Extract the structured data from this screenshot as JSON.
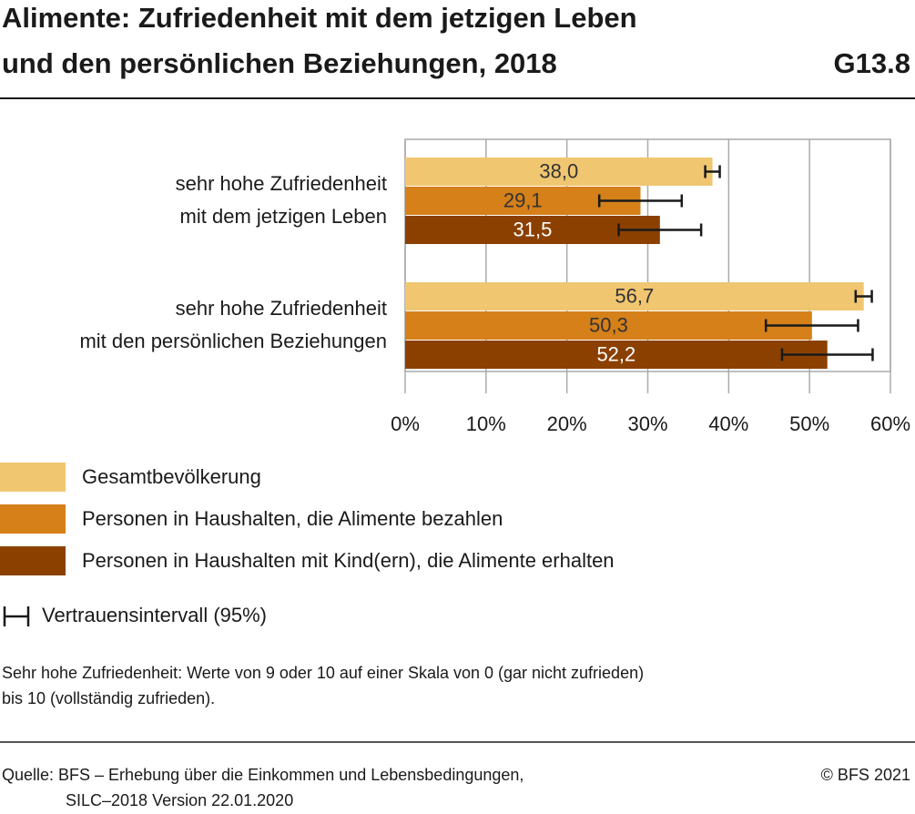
{
  "chart_data": {
    "type": "bar",
    "orientation": "horizontal",
    "title": [
      "Alimente: Zufriedenheit mit dem jetzigen Leben",
      "und den persönlichen Beziehungen, 2018"
    ],
    "chart_id": "G13.8",
    "categories": [
      [
        "sehr hohe Zufriedenheit",
        "mit dem jetzigen Leben"
      ],
      [
        "sehr hohe Zufriedenheit",
        "mit den persönlichen Beziehungen"
      ]
    ],
    "series": [
      {
        "name": "Gesamtbevölkerung",
        "color": "#f0c670",
        "label_color": "#333333",
        "values": [
          38.0,
          56.7
        ],
        "value_labels": [
          "38,0",
          "56,7"
        ],
        "errors": [
          0.9,
          1.0
        ]
      },
      {
        "name": "Personen in Haushalten, die Alimente bezahlen",
        "color": "#d58019",
        "label_color": "#333333",
        "values": [
          29.1,
          50.3
        ],
        "value_labels": [
          "29,1",
          "50,3"
        ],
        "errors": [
          5.1,
          5.7
        ]
      },
      {
        "name": "Personen in Haushalten mit Kind(ern), die Alimente erhalten",
        "color": "#8b4000",
        "label_color": "#ffffff",
        "values": [
          31.5,
          52.2
        ],
        "value_labels": [
          "31,5",
          "52,2"
        ],
        "errors": [
          5.1,
          5.6
        ]
      }
    ],
    "xlim": [
      0,
      60
    ],
    "xticks": [
      {
        "value": 0,
        "label": "0%"
      },
      {
        "value": 10,
        "label": "10%"
      },
      {
        "value": 20,
        "label": "20%"
      },
      {
        "value": 30,
        "label": "30%"
      },
      {
        "value": 40,
        "label": "40%"
      },
      {
        "value": 50,
        "label": "50%"
      },
      {
        "value": 60,
        "label": "60%"
      }
    ],
    "grid": true,
    "error_legend": "Vertrauensintervall (95%)",
    "note": [
      "Sehr hohe Zufriedenheit: Werte von 9 oder 10 auf einer Skala von 0 (gar nicht zufrieden)",
      "bis 10 (vollständig zufrieden)."
    ],
    "source": [
      "Quelle: BFS – Erhebung über die Einkommen und Lebensbedingungen,",
      "SILC–2018 Version 22.01.2020"
    ],
    "copyright": "© BFS 2021"
  }
}
